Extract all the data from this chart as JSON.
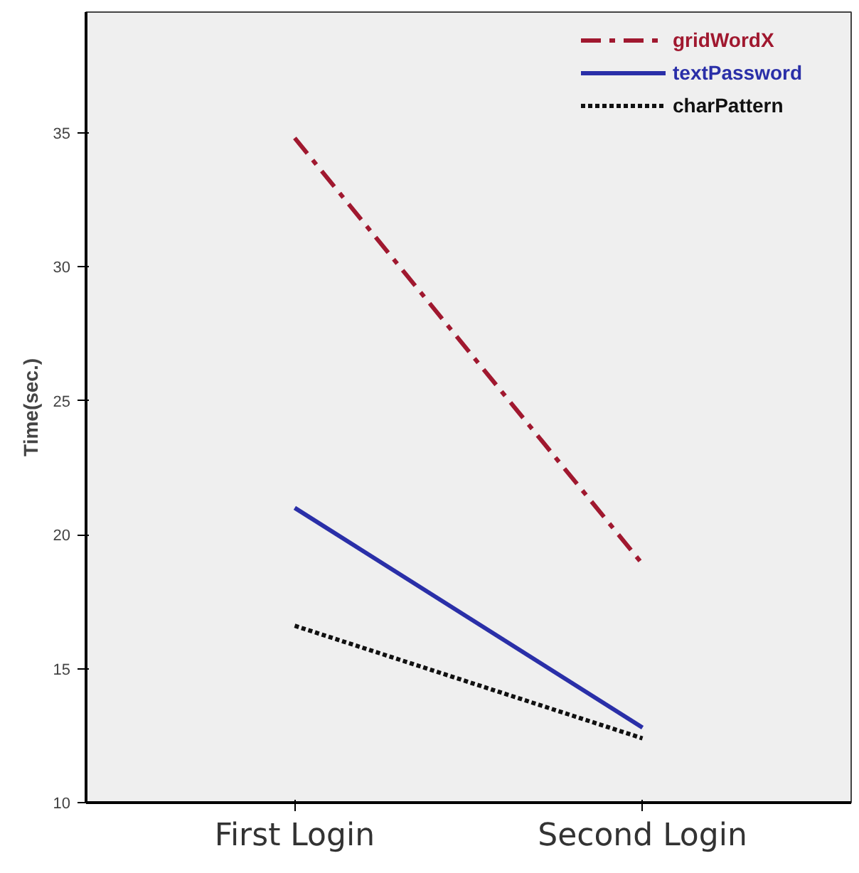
{
  "chart_data": {
    "type": "line",
    "ylabel": "Time(sec.)",
    "categories": [
      "First Login",
      "Second Login"
    ],
    "ylim": [
      10,
      39.5
    ],
    "yticks": [
      10,
      15,
      20,
      25,
      30,
      35
    ],
    "grid": false,
    "legend": "top right",
    "marker": "none",
    "series": [
      {
        "name": "gridWordX",
        "color": "#a0182f",
        "line_style": "dashdot",
        "values": [
          34.8,
          18.9
        ]
      },
      {
        "name": "textPassword",
        "color": "#2a2fa8",
        "line_style": "solid",
        "values": [
          21.0,
          12.8
        ]
      },
      {
        "name": "charPattern",
        "color": "#111111",
        "line_style": "dotted",
        "values": [
          16.6,
          12.4
        ]
      }
    ]
  }
}
